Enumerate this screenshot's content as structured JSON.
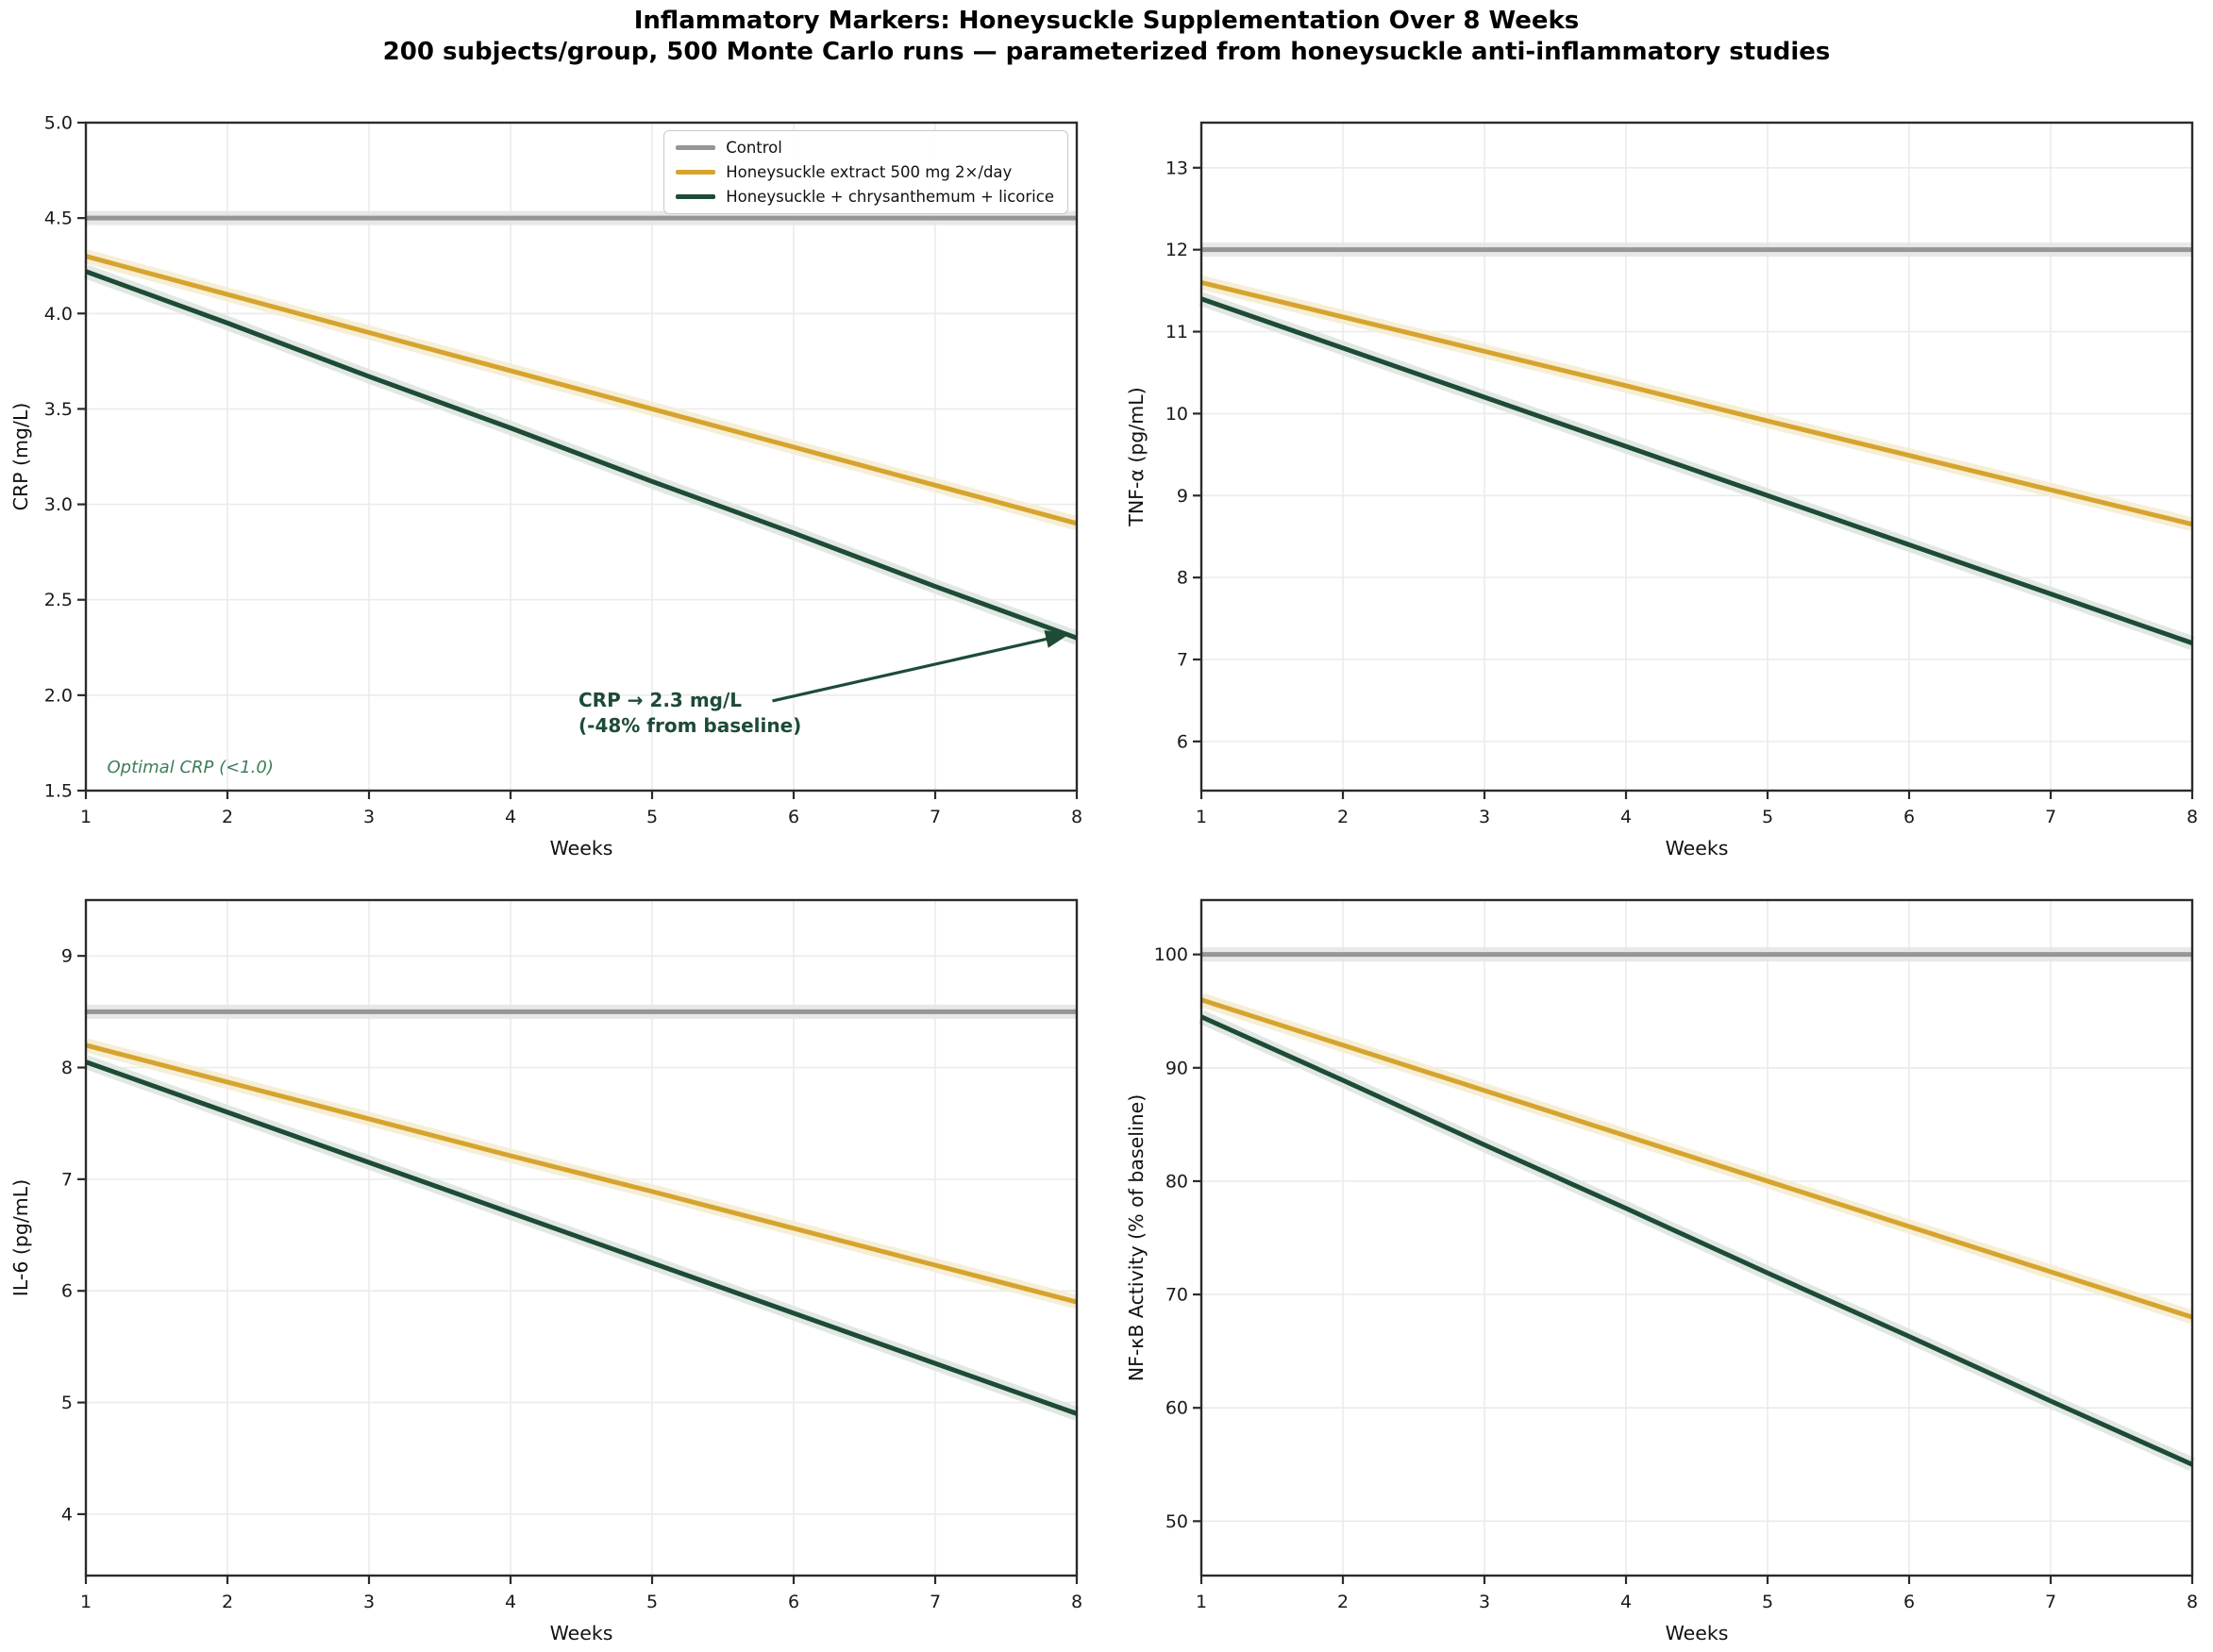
{
  "figure": {
    "title": "Inflammatory Markers: Honeysuckle Supplementation Over 8 Weeks",
    "subtitle": "200 subjects/group, 500 Monte Carlo runs — parameterized from honeysuckle anti-inflammatory studies"
  },
  "colors": {
    "control": "#969696",
    "extract": "#D6A42E",
    "combo": "#1D4B36",
    "control_band": "#E6E6E6",
    "extract_band": "#F5ECD2",
    "combo_band": "#DEE6E1",
    "grid": "#EBEBEB",
    "spine": "#2B2B2B",
    "tick_text": "#1A1A1A",
    "annotation_green": "#1D4B36",
    "optimal_green": "#3E7C5B"
  },
  "legend": {
    "position": "upper right",
    "entries": [
      {
        "label": "Control",
        "color_key": "control"
      },
      {
        "label": "Honeysuckle extract 500 mg 2×/day",
        "color_key": "extract"
      },
      {
        "label": "Honeysuckle + chrysanthemum + licorice",
        "color_key": "combo"
      }
    ]
  },
  "chart_data": [
    {
      "id": "crp",
      "type": "line",
      "xlabel": "Weeks",
      "ylabel": "CRP (mg/L)",
      "x": [
        1,
        2,
        3,
        4,
        5,
        6,
        7,
        8
      ],
      "xlim": [
        1,
        8
      ],
      "ylim": [
        1.5,
        5.0
      ],
      "xtick_labels": [
        "1",
        "2",
        "3",
        "4",
        "5",
        "6",
        "7",
        "8"
      ],
      "yticks": [
        1.5,
        2.0,
        2.5,
        3.0,
        3.5,
        4.0,
        4.5,
        5.0
      ],
      "ytick_labels": [
        "1.5",
        "2.0",
        "2.5",
        "3.0",
        "3.5",
        "4.0",
        "4.5",
        "5.0"
      ],
      "grid": true,
      "legend_position": "upper right",
      "series": [
        {
          "name": "Control",
          "color_key": "control",
          "values": [
            4.5,
            4.5,
            4.5,
            4.5,
            4.5,
            4.5,
            4.5,
            4.5
          ]
        },
        {
          "name": "Honeysuckle extract 500 mg 2×/day",
          "color_key": "extract",
          "values": [
            4.3,
            4.1,
            3.9,
            3.7,
            3.5,
            3.3,
            3.1,
            2.9
          ]
        },
        {
          "name": "Honeysuckle + chrysanthemum + licorice",
          "color_key": "combo",
          "values": [
            4.22,
            3.95,
            3.67,
            3.4,
            3.12,
            2.85,
            2.57,
            2.3
          ]
        }
      ],
      "annotations": [
        {
          "type": "arrow-label",
          "text_lines": [
            "CRP → 2.3 mg/L",
            "(-48% from baseline)"
          ],
          "text_xy": [
            4.48,
            2.04
          ],
          "arrow_from": [
            5.85,
            1.97
          ],
          "arrow_to": [
            7.94,
            2.32
          ]
        },
        {
          "type": "text",
          "text": "Optimal CRP (<1.0)",
          "xy": [
            1.15,
            1.675
          ]
        }
      ]
    },
    {
      "id": "tnf",
      "type": "line",
      "xlabel": "Weeks",
      "ylabel": "TNF-α (pg/mL)",
      "x": [
        1,
        2,
        3,
        4,
        5,
        6,
        7,
        8
      ],
      "xlim": [
        1,
        8
      ],
      "ylim": [
        5.4,
        13.55
      ],
      "xtick_labels": [
        "1",
        "2",
        "3",
        "4",
        "5",
        "6",
        "7",
        "8"
      ],
      "yticks": [
        6,
        7,
        8,
        9,
        10,
        11,
        12,
        13
      ],
      "ytick_labels": [
        "6",
        "7",
        "8",
        "9",
        "10",
        "11",
        "12",
        "13"
      ],
      "grid": true,
      "series": [
        {
          "name": "Control",
          "color_key": "control",
          "values": [
            12.0,
            12.0,
            12.0,
            12.0,
            12.0,
            12.0,
            12.0,
            12.0
          ]
        },
        {
          "name": "Honeysuckle extract 500 mg 2×/day",
          "color_key": "extract",
          "values": [
            11.6,
            11.18,
            10.76,
            10.34,
            9.91,
            9.49,
            9.07,
            8.65
          ]
        },
        {
          "name": "Honeysuckle + chrysanthemum + licorice",
          "color_key": "combo",
          "values": [
            11.4,
            10.8,
            10.2,
            9.6,
            9.0,
            8.4,
            7.8,
            7.2
          ]
        }
      ],
      "annotations": []
    },
    {
      "id": "il6",
      "type": "line",
      "xlabel": "Weeks",
      "ylabel": "IL-6 (pg/mL)",
      "x": [
        1,
        2,
        3,
        4,
        5,
        6,
        7,
        8
      ],
      "xlim": [
        1,
        8
      ],
      "ylim": [
        3.45,
        9.5
      ],
      "xtick_labels": [
        "1",
        "2",
        "3",
        "4",
        "5",
        "6",
        "7",
        "8"
      ],
      "yticks": [
        4,
        5,
        6,
        7,
        8,
        9
      ],
      "ytick_labels": [
        "4",
        "5",
        "6",
        "7",
        "8",
        "9"
      ],
      "grid": true,
      "series": [
        {
          "name": "Control",
          "color_key": "control",
          "values": [
            8.5,
            8.5,
            8.5,
            8.5,
            8.5,
            8.5,
            8.5,
            8.5
          ]
        },
        {
          "name": "Honeysuckle extract 500 mg 2×/day",
          "color_key": "extract",
          "values": [
            8.2,
            7.87,
            7.54,
            7.21,
            6.89,
            6.56,
            6.23,
            5.9
          ]
        },
        {
          "name": "Honeysuckle + chrysanthemum + licorice",
          "color_key": "combo",
          "values": [
            8.05,
            7.6,
            7.15,
            6.7,
            6.25,
            5.8,
            5.35,
            4.9
          ]
        }
      ],
      "annotations": []
    },
    {
      "id": "nfkb",
      "type": "line",
      "xlabel": "Weeks",
      "ylabel": "NF-κB Activity (% of baseline)",
      "x": [
        1,
        2,
        3,
        4,
        5,
        6,
        7,
        8
      ],
      "xlim": [
        1,
        8
      ],
      "ylim": [
        45.2,
        104.8
      ],
      "xtick_labels": [
        "1",
        "2",
        "3",
        "4",
        "5",
        "6",
        "7",
        "8"
      ],
      "yticks": [
        50,
        60,
        70,
        80,
        90,
        100
      ],
      "ytick_labels": [
        "50",
        "60",
        "70",
        "80",
        "90",
        "100"
      ],
      "grid": true,
      "series": [
        {
          "name": "Control",
          "color_key": "control",
          "values": [
            100,
            100,
            100,
            100,
            100,
            100,
            100,
            100
          ]
        },
        {
          "name": "Honeysuckle extract 500 mg 2×/day",
          "color_key": "extract",
          "values": [
            96.0,
            92.0,
            88.0,
            84.0,
            80.0,
            76.0,
            72.0,
            68.0
          ]
        },
        {
          "name": "Honeysuckle + chrysanthemum + licorice",
          "color_key": "combo",
          "values": [
            94.5,
            88.9,
            83.2,
            77.6,
            71.9,
            66.3,
            60.6,
            55.0
          ]
        }
      ],
      "annotations": []
    }
  ]
}
